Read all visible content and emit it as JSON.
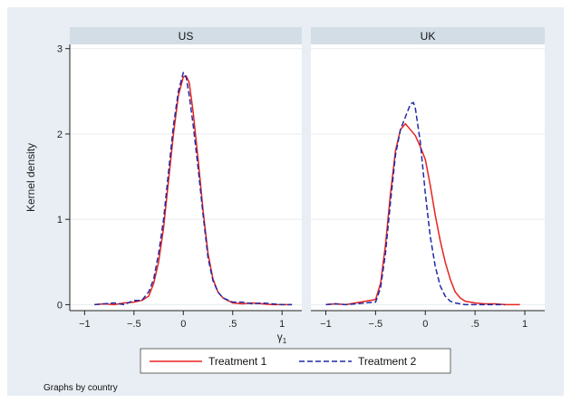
{
  "chart_data": {
    "type": "line",
    "ylabel": "Kernel density",
    "xlabel": "γ",
    "xlabel_sub": "1",
    "xlim": [
      -1.15,
      1.2
    ],
    "ylim": [
      -0.07,
      3.05
    ],
    "x_ticks": [
      -1,
      -0.5,
      0,
      0.5,
      1
    ],
    "x_tick_labels": [
      "−1",
      "−.5",
      "0",
      ".5",
      "1"
    ],
    "y_ticks": [
      0,
      1,
      2,
      3
    ],
    "y_tick_labels": [
      "0",
      "1",
      "2",
      "3"
    ],
    "grid": true,
    "legend": {
      "placement": "bottom",
      "entries": [
        "Treatment 1",
        "Treatment 2"
      ]
    },
    "note": "Graphs by country",
    "colors": {
      "Treatment 1": "#e8231f",
      "Treatment 2": "#1f2aa8"
    },
    "panels": [
      {
        "title": "US",
        "series": [
          {
            "name": "Treatment 1",
            "style": "solid",
            "x": [
              -0.9,
              -0.8,
              -0.7,
              -0.6,
              -0.5,
              -0.42,
              -0.35,
              -0.3,
              -0.25,
              -0.2,
              -0.15,
              -0.1,
              -0.05,
              0,
              0.03,
              0.06,
              0.1,
              0.15,
              0.2,
              0.25,
              0.3,
              0.35,
              0.4,
              0.5,
              0.6,
              0.7,
              0.8,
              0.9,
              1.0,
              1.1
            ],
            "y": [
              0.0,
              0.01,
              0.0,
              0.02,
              0.03,
              0.05,
              0.1,
              0.25,
              0.5,
              0.9,
              1.45,
              2.0,
              2.45,
              2.67,
              2.68,
              2.6,
              2.25,
              1.7,
              1.1,
              0.6,
              0.3,
              0.15,
              0.08,
              0.02,
              0.01,
              0.02,
              0.01,
              0.0,
              0.0,
              0.0
            ]
          },
          {
            "name": "Treatment 2",
            "style": "dashed",
            "x": [
              -0.9,
              -0.8,
              -0.7,
              -0.6,
              -0.5,
              -0.42,
              -0.35,
              -0.3,
              -0.25,
              -0.2,
              -0.15,
              -0.1,
              -0.05,
              0,
              0.03,
              0.06,
              0.1,
              0.15,
              0.2,
              0.25,
              0.3,
              0.35,
              0.4,
              0.5,
              0.6,
              0.7,
              0.8,
              0.9,
              1.0,
              1.1
            ],
            "y": [
              0.0,
              0.01,
              0.02,
              0.0,
              0.05,
              0.05,
              0.15,
              0.3,
              0.6,
              1.0,
              1.55,
              2.1,
              2.5,
              2.72,
              2.66,
              2.45,
              2.1,
              1.6,
              1.05,
              0.55,
              0.28,
              0.15,
              0.08,
              0.03,
              0.03,
              0.01,
              0.02,
              0.01,
              0.0,
              0.0
            ]
          }
        ]
      },
      {
        "title": "UK",
        "series": [
          {
            "name": "Treatment 1",
            "style": "solid",
            "x": [
              -1.0,
              -0.9,
              -0.8,
              -0.7,
              -0.6,
              -0.5,
              -0.45,
              -0.4,
              -0.35,
              -0.3,
              -0.25,
              -0.2,
              -0.15,
              -0.1,
              -0.05,
              0,
              0.05,
              0.1,
              0.15,
              0.2,
              0.25,
              0.3,
              0.35,
              0.4,
              0.5,
              0.6,
              0.7,
              0.8,
              0.95
            ],
            "y": [
              0.0,
              0.01,
              0.0,
              0.02,
              0.04,
              0.06,
              0.25,
              0.7,
              1.3,
              1.8,
              2.05,
              2.12,
              2.05,
              1.98,
              1.85,
              1.7,
              1.4,
              1.05,
              0.75,
              0.5,
              0.3,
              0.15,
              0.08,
              0.04,
              0.02,
              0.01,
              0.01,
              0.0,
              0.0
            ]
          },
          {
            "name": "Treatment 2",
            "style": "dashed",
            "x": [
              -1.0,
              -0.9,
              -0.8,
              -0.7,
              -0.6,
              -0.5,
              -0.45,
              -0.4,
              -0.35,
              -0.3,
              -0.25,
              -0.2,
              -0.15,
              -0.12,
              -0.1,
              -0.05,
              0,
              0.05,
              0.1,
              0.15,
              0.2,
              0.25,
              0.3,
              0.35,
              0.4,
              0.5,
              0.6,
              0.7,
              0.8
            ],
            "y": [
              0.0,
              0.01,
              0.0,
              0.01,
              0.02,
              0.03,
              0.2,
              0.6,
              1.2,
              1.75,
              2.05,
              2.2,
              2.35,
              2.37,
              2.3,
              1.9,
              1.3,
              0.8,
              0.45,
              0.22,
              0.1,
              0.04,
              0.02,
              0.01,
              0.0,
              0.0,
              0.0,
              0.0,
              0.0
            ]
          }
        ]
      }
    ]
  }
}
